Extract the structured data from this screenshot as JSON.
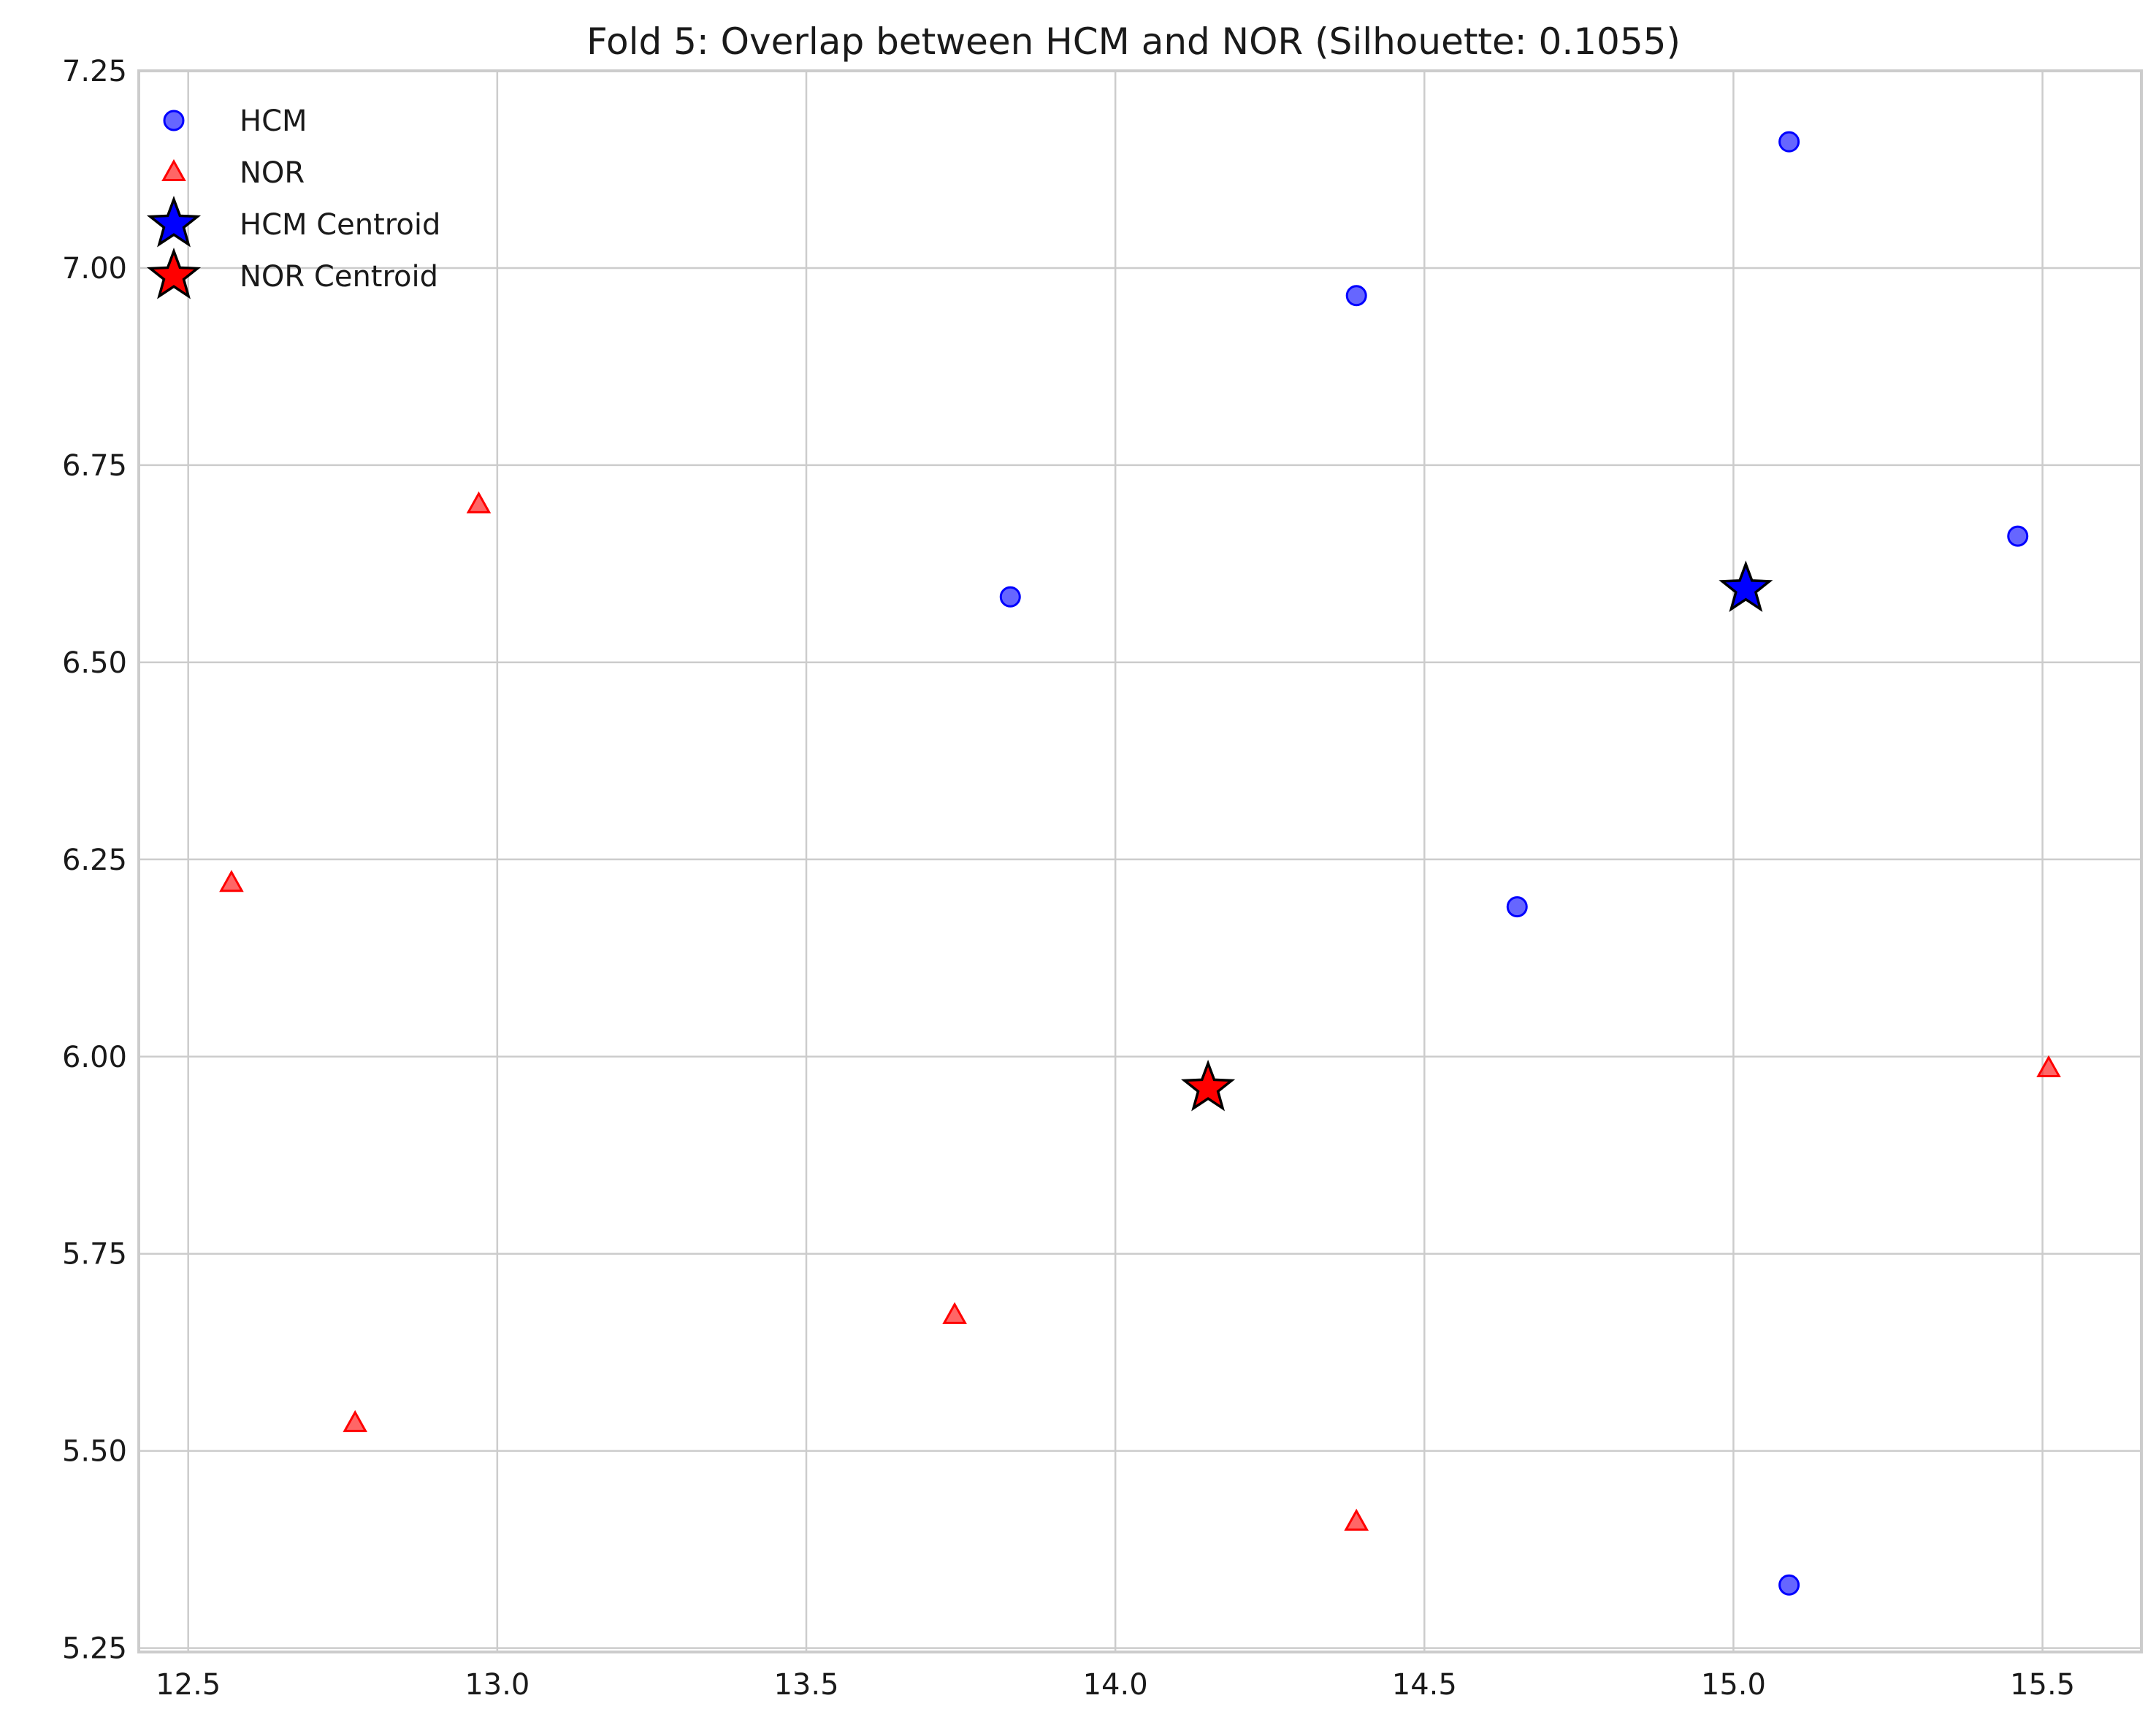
{
  "chart_data": {
    "type": "scatter",
    "title": "Fold 5: Overlap between HCM and NOR (Silhouette: 0.1055)",
    "xlabel": "",
    "ylabel": "",
    "xlim": [
      12.42,
      15.66
    ],
    "ylim": [
      5.245,
      7.25
    ],
    "xticks": [
      "12.5",
      "13.0",
      "13.5",
      "14.0",
      "14.5",
      "15.0",
      "15.5"
    ],
    "yticks": [
      "5.25",
      "5.50",
      "5.75",
      "6.00",
      "6.25",
      "6.50",
      "6.75",
      "7.00",
      "7.25"
    ],
    "grid": true,
    "legend_position": "top-left",
    "series": [
      {
        "name": "HCM",
        "marker": "circle",
        "color": "#0000ff",
        "points": [
          {
            "x": 15.09,
            "y": 7.16
          },
          {
            "x": 14.39,
            "y": 6.965
          },
          {
            "x": 15.46,
            "y": 6.66
          },
          {
            "x": 13.83,
            "y": 6.583
          },
          {
            "x": 14.65,
            "y": 6.19
          },
          {
            "x": 15.09,
            "y": 5.33
          }
        ]
      },
      {
        "name": "NOR",
        "marker": "triangle",
        "color": "#ff0000",
        "points": [
          {
            "x": 12.97,
            "y": 6.7
          },
          {
            "x": 12.57,
            "y": 6.22
          },
          {
            "x": 15.51,
            "y": 5.985
          },
          {
            "x": 13.74,
            "y": 5.672
          },
          {
            "x": 12.77,
            "y": 5.535
          },
          {
            "x": 14.39,
            "y": 5.41
          }
        ]
      },
      {
        "name": "HCM Centroid",
        "marker": "star",
        "color": "#0000ff",
        "points": [
          {
            "x": 15.02,
            "y": 6.593
          }
        ]
      },
      {
        "name": "NOR Centroid",
        "marker": "star",
        "color": "#ff0000",
        "points": [
          {
            "x": 14.15,
            "y": 5.96
          }
        ]
      }
    ]
  }
}
